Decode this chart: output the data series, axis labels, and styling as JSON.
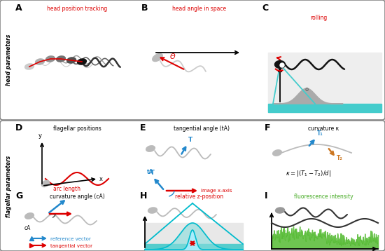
{
  "bg_color": "#ffffff",
  "border_color": "#888888",
  "red": "#dd0000",
  "blue": "#2288cc",
  "orange": "#cc7722",
  "green": "#44aa22",
  "cyan": "#00bbcc",
  "dark": "#111111",
  "gray": "#aaaaaa",
  "darkgray": "#555555",
  "title_top": "head parameters",
  "title_bottom": "flagellar parameters",
  "labels": {
    "A": "head position tracking",
    "B": "head angle in space",
    "C": "rolling",
    "D": "flagellar positions",
    "E": "tangential angle (tA)",
    "F": "curvature κ",
    "G": "curvature angle (cA)",
    "H": "relative z-position",
    "I": "fluorescence intensity"
  }
}
